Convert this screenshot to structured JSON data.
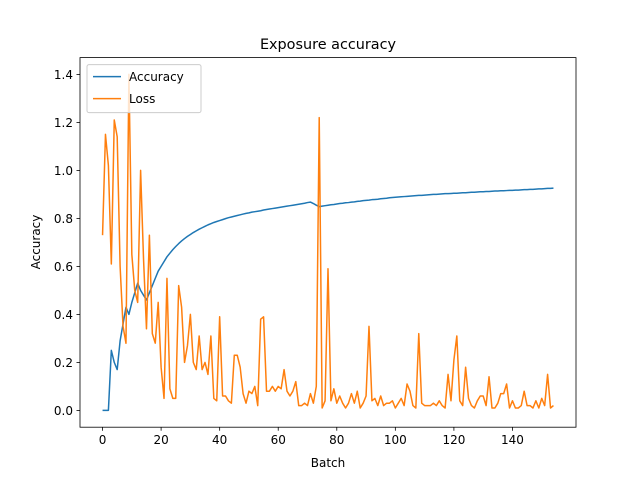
{
  "chart_data": {
    "type": "line",
    "title": "Exposure accuracy",
    "x_label": "Batch",
    "y_label": "Accuracy",
    "x": [
      0,
      1,
      2,
      3,
      4,
      5,
      6,
      7,
      8,
      9,
      10,
      11,
      12,
      13,
      14,
      15,
      16,
      17,
      18,
      19,
      20,
      21,
      22,
      23,
      24,
      25,
      26,
      27,
      28,
      29,
      30,
      31,
      32,
      33,
      34,
      35,
      36,
      37,
      38,
      39,
      40,
      41,
      42,
      43,
      44,
      45,
      46,
      47,
      48,
      49,
      50,
      51,
      52,
      53,
      54,
      55,
      56,
      57,
      58,
      59,
      60,
      61,
      62,
      63,
      64,
      65,
      66,
      67,
      68,
      69,
      70,
      71,
      72,
      73,
      74,
      75,
      76,
      77,
      78,
      79,
      80,
      81,
      82,
      83,
      84,
      85,
      86,
      87,
      88,
      89,
      90,
      91,
      92,
      93,
      94,
      95,
      96,
      97,
      98,
      99,
      100,
      101,
      102,
      103,
      104,
      105,
      106,
      107,
      108,
      109,
      110,
      111,
      112,
      113,
      114,
      115,
      116,
      117,
      118,
      119,
      120,
      121,
      122,
      123,
      124,
      125,
      126,
      127,
      128,
      129,
      130,
      131,
      132,
      133,
      134,
      135,
      136,
      137,
      138,
      139,
      140,
      141,
      142,
      143,
      144,
      145,
      146,
      147,
      148,
      149,
      150,
      151,
      152,
      153,
      154
    ],
    "series": [
      {
        "name": "Accuracy",
        "color": "#1f77b4",
        "values": [
          0,
          0,
          0,
          0.25,
          0.2,
          0.17,
          0.29,
          0.36,
          0.43,
          0.4,
          0.45,
          0.49,
          0.53,
          0.5,
          0.48,
          0.46,
          0.49,
          0.52,
          0.55,
          0.58,
          0.6,
          0.62,
          0.64,
          0.655,
          0.67,
          0.683,
          0.695,
          0.706,
          0.716,
          0.725,
          0.733,
          0.741,
          0.748,
          0.755,
          0.761,
          0.767,
          0.773,
          0.778,
          0.783,
          0.787,
          0.791,
          0.795,
          0.799,
          0.803,
          0.806,
          0.809,
          0.812,
          0.815,
          0.818,
          0.821,
          0.823,
          0.826,
          0.828,
          0.83,
          0.832,
          0.835,
          0.837,
          0.839,
          0.841,
          0.843,
          0.845,
          0.847,
          0.849,
          0.851,
          0.853,
          0.855,
          0.857,
          0.859,
          0.861,
          0.863,
          0.866,
          0.868,
          0.862,
          0.855,
          0.849,
          0.851,
          0.853,
          0.855,
          0.857,
          0.858,
          0.86,
          0.862,
          0.863,
          0.865,
          0.866,
          0.868,
          0.869,
          0.871,
          0.872,
          0.874,
          0.875,
          0.876,
          0.878,
          0.879,
          0.88,
          0.882,
          0.883,
          0.884,
          0.886,
          0.887,
          0.888,
          0.889,
          0.89,
          0.891,
          0.892,
          0.893,
          0.894,
          0.895,
          0.896,
          0.896,
          0.897,
          0.898,
          0.899,
          0.9,
          0.9,
          0.901,
          0.902,
          0.903,
          0.903,
          0.904,
          0.905,
          0.905,
          0.906,
          0.907,
          0.907,
          0.908,
          0.909,
          0.909,
          0.91,
          0.911,
          0.911,
          0.912,
          0.912,
          0.913,
          0.914,
          0.914,
          0.915,
          0.915,
          0.916,
          0.917,
          0.917,
          0.918,
          0.918,
          0.919,
          0.92,
          0.92,
          0.921,
          0.921,
          0.922,
          0.923,
          0.923,
          0.924,
          0.925,
          0.925,
          0.926
        ]
      },
      {
        "name": "Loss",
        "color": "#ff7f0e",
        "values": [
          0.73,
          1.15,
          1.02,
          0.61,
          1.21,
          1.14,
          0.6,
          0.35,
          0.28,
          1.4,
          0.65,
          0.5,
          0.45,
          1.0,
          0.63,
          0.34,
          0.73,
          0.32,
          0.28,
          0.45,
          0.18,
          0.05,
          0.55,
          0.09,
          0.05,
          0.05,
          0.52,
          0.43,
          0.2,
          0.27,
          0.4,
          0.2,
          0.17,
          0.31,
          0.17,
          0.2,
          0.15,
          0.31,
          0.05,
          0.04,
          0.39,
          0.06,
          0.06,
          0.04,
          0.03,
          0.23,
          0.23,
          0.18,
          0.07,
          0.03,
          0.08,
          0.07,
          0.1,
          0.02,
          0.38,
          0.39,
          0.08,
          0.08,
          0.1,
          0.08,
          0.1,
          0.09,
          0.17,
          0.08,
          0.06,
          0.08,
          0.12,
          0.02,
          0.02,
          0.03,
          0.02,
          0.07,
          0.03,
          0.1,
          1.22,
          0.01,
          0.04,
          0.59,
          0.04,
          0.09,
          0.03,
          0.06,
          0.03,
          0.01,
          0.03,
          0.07,
          0.03,
          0.08,
          0.01,
          0.03,
          0.06,
          0.35,
          0.04,
          0.05,
          0.02,
          0.06,
          0.02,
          0.03,
          0.03,
          0.04,
          0.01,
          0.03,
          0.05,
          0.02,
          0.11,
          0.08,
          0.02,
          0.01,
          0.32,
          0.03,
          0.02,
          0.02,
          0.02,
          0.03,
          0.02,
          0.04,
          0.02,
          0.01,
          0.15,
          0.04,
          0.21,
          0.31,
          0.04,
          0.02,
          0.18,
          0.05,
          0.02,
          0.01,
          0.04,
          0.06,
          0.06,
          0.02,
          0.14,
          0.01,
          0.01,
          0.03,
          0.07,
          0.07,
          0.11,
          0.01,
          0.04,
          0.01,
          0.01,
          0.02,
          0.08,
          0.02,
          0.02,
          0.01,
          0.04,
          0.01,
          0.05,
          0.02,
          0.15,
          0.01,
          0.02
        ]
      }
    ],
    "xlim": [
      -7.7,
      161.7
    ],
    "ylim": [
      -0.07,
      1.47
    ],
    "xticks": [
      0,
      20,
      40,
      60,
      80,
      100,
      120,
      140
    ],
    "yticks": [
      {
        "value": 0,
        "label": "0.0"
      },
      0.2,
      0.4,
      0.6,
      0.8,
      {
        "value": 1,
        "label": "1.0"
      },
      1.2,
      1.4
    ],
    "legend": "upper left"
  }
}
